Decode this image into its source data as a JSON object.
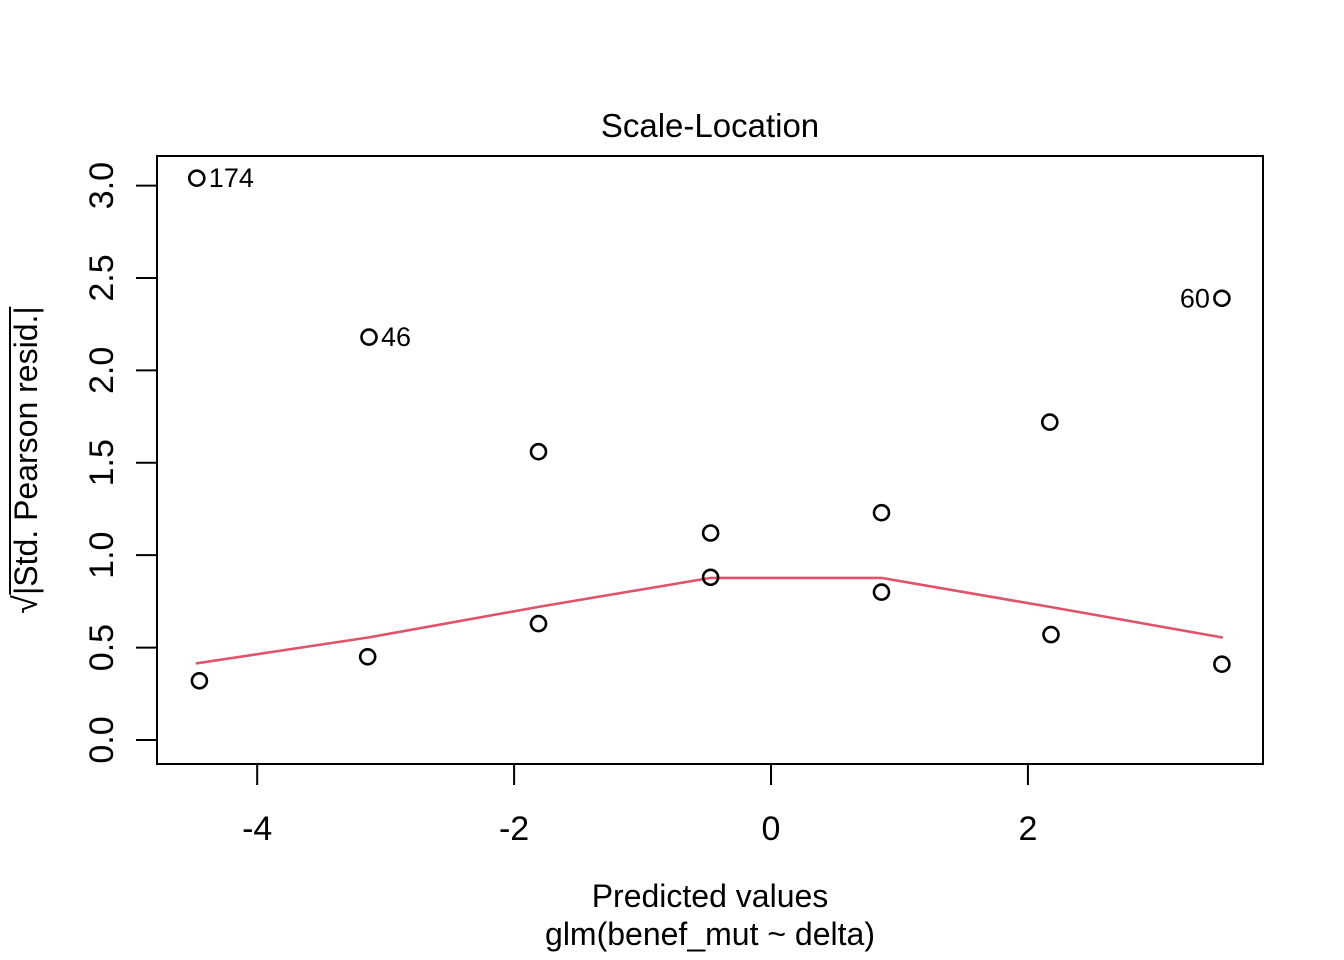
{
  "chart_data": {
    "type": "scatter",
    "title": "Scale-Location",
    "xlabel": "Predicted values",
    "model_label": "glm(benef_mut ~ delta)",
    "ylabel_radical": "√",
    "ylabel": "|Std. Pearson resid.|",
    "xlim": [
      -4.78,
      3.83
    ],
    "ylim": [
      -0.13,
      3.16
    ],
    "grid": false,
    "legend": null,
    "x_ticks": [
      {
        "v": -4,
        "label": "-4"
      },
      {
        "v": -2,
        "label": "-2"
      },
      {
        "v": 0,
        "label": "0"
      },
      {
        "v": 2,
        "label": "2"
      }
    ],
    "y_ticks": [
      {
        "v": 0,
        "label": "0.0"
      },
      {
        "v": 0.5,
        "label": "0.5"
      },
      {
        "v": 1,
        "label": "1.0"
      },
      {
        "v": 1.5,
        "label": "1.5"
      },
      {
        "v": 2,
        "label": "2.0"
      },
      {
        "v": 2.5,
        "label": "2.5"
      },
      {
        "v": 3,
        "label": "3.0"
      }
    ],
    "points": [
      {
        "x": -4.47,
        "y": 3.04,
        "label": "174",
        "label_side": "right"
      },
      {
        "x": -4.45,
        "y": 0.32
      },
      {
        "x": -3.13,
        "y": 2.18,
        "label": "46",
        "label_side": "right"
      },
      {
        "x": -3.14,
        "y": 0.45
      },
      {
        "x": -1.81,
        "y": 1.56
      },
      {
        "x": -1.81,
        "y": 0.63
      },
      {
        "x": -0.47,
        "y": 1.12
      },
      {
        "x": -0.47,
        "y": 0.88
      },
      {
        "x": 0.86,
        "y": 1.23
      },
      {
        "x": 0.86,
        "y": 0.8
      },
      {
        "x": 2.17,
        "y": 1.72
      },
      {
        "x": 2.18,
        "y": 0.57
      },
      {
        "x": 3.51,
        "y": 2.39,
        "label": "60",
        "label_side": "left"
      },
      {
        "x": 3.51,
        "y": 0.41
      }
    ],
    "smooth_line": [
      {
        "x": -4.47,
        "y": 0.415
      },
      {
        "x": -3.13,
        "y": 0.555
      },
      {
        "x": -1.81,
        "y": 0.72
      },
      {
        "x": -0.47,
        "y": 0.877
      },
      {
        "x": 0.86,
        "y": 0.877
      },
      {
        "x": 2.17,
        "y": 0.72
      },
      {
        "x": 3.51,
        "y": 0.555
      }
    ],
    "colors": {
      "points": "#000000",
      "smooth_line": "#DF536B",
      "axis": "#000000",
      "background": "#FFFFFF"
    }
  }
}
